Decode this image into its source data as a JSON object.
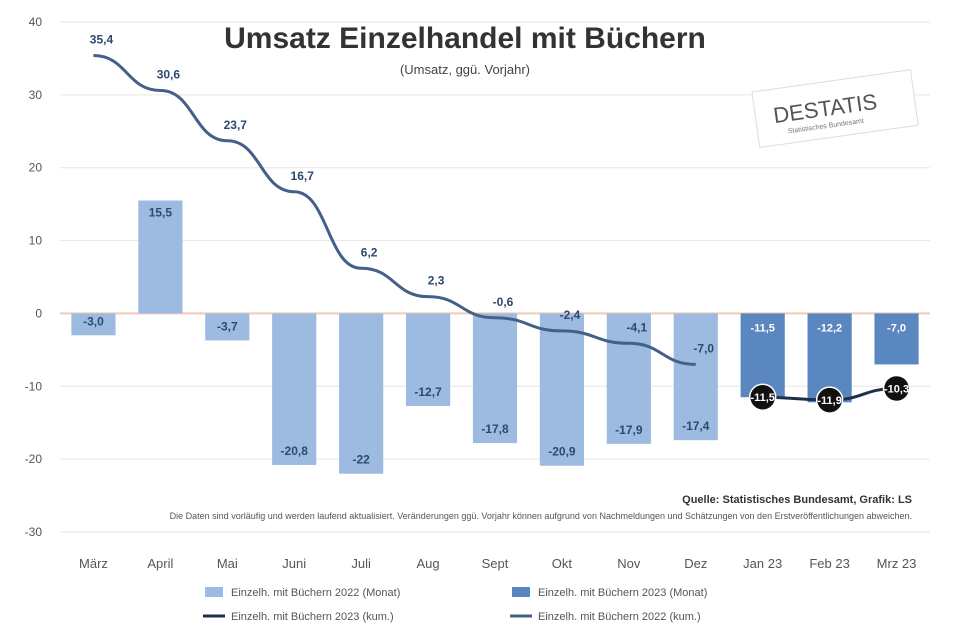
{
  "chart_data": {
    "type": "bar",
    "title": "Umsatz Einzelhandel mit Büchern",
    "subtitle": "(Umsatz, ggü. Vorjahr)",
    "categories": [
      "März",
      "April",
      "Mai",
      "Juni",
      "Juli",
      "Aug",
      "Sept",
      "Okt",
      "Nov",
      "Dez",
      "Jan 23",
      "Feb 23",
      "Mrz 23"
    ],
    "ylim": [
      -30,
      40
    ],
    "yticks": [
      -30,
      -20,
      -10,
      0,
      10,
      20,
      30,
      40
    ],
    "grid": true,
    "legend_position": "bottom",
    "series": [
      {
        "name": "Einzelh. mit Büchern 2022 (Monat)",
        "kind": "bar",
        "color": "#9dbbe0",
        "values": [
          -3.0,
          15.5,
          -3.7,
          -20.8,
          -22.0,
          -12.7,
          -17.8,
          -20.9,
          -17.9,
          -17.4,
          null,
          null,
          null
        ],
        "labels": [
          "-3,0",
          "15,5",
          "-3,7",
          "-20,8",
          "-22",
          "-12,7",
          "-17,8",
          "-20,9",
          "-17,9",
          "-17,4",
          "",
          "",
          ""
        ]
      },
      {
        "name": "Einzelh. mit Büchern 2023 (Monat)",
        "kind": "bar",
        "color": "#5a87bf",
        "values": [
          null,
          null,
          null,
          null,
          null,
          null,
          null,
          null,
          null,
          null,
          -11.5,
          -12.2,
          -7.0
        ],
        "labels": [
          "",
          "",
          "",
          "",
          "",
          "",
          "",
          "",
          "",
          "",
          "-11,5",
          "-12,2",
          "-7,0"
        ]
      },
      {
        "name": "Einzelh. mit Büchern 2023 (kum.)",
        "kind": "line",
        "color": "#1f2f4a",
        "values": [
          null,
          null,
          null,
          null,
          null,
          null,
          null,
          null,
          null,
          null,
          -11.5,
          -11.9,
          -10.3
        ],
        "labels": [
          "",
          "",
          "",
          "",
          "",
          "",
          "",
          "",
          "",
          "",
          "-11,5",
          "-11,9",
          "-10,3"
        ]
      },
      {
        "name": "Einzelh. mit Büchern 2022 (kum.)",
        "kind": "line",
        "color": "#44608a",
        "values": [
          35.4,
          30.6,
          23.7,
          16.7,
          6.2,
          2.3,
          -0.6,
          -2.4,
          -4.1,
          -7.0,
          null,
          null,
          null
        ],
        "labels": [
          "35,4",
          "30,6",
          "23,7",
          "16,7",
          "6,2",
          "2,3",
          "-0,6",
          "-2,4",
          "-4,1",
          "-7,0",
          "",
          "",
          ""
        ]
      }
    ],
    "source": "Quelle: Statistisches Bundesamt, Grafik: LS",
    "note": "Die Daten sind vorläufig und werden laufend aktualisiert. Veränderungen ggü. Vorjahr können aufgrund von Nachmeldungen und Schätzungen von den Erstveröffentlichungen abweichen."
  },
  "logo": {
    "text": "DESTATIS",
    "sub": "Statistisches Bundesamt"
  }
}
